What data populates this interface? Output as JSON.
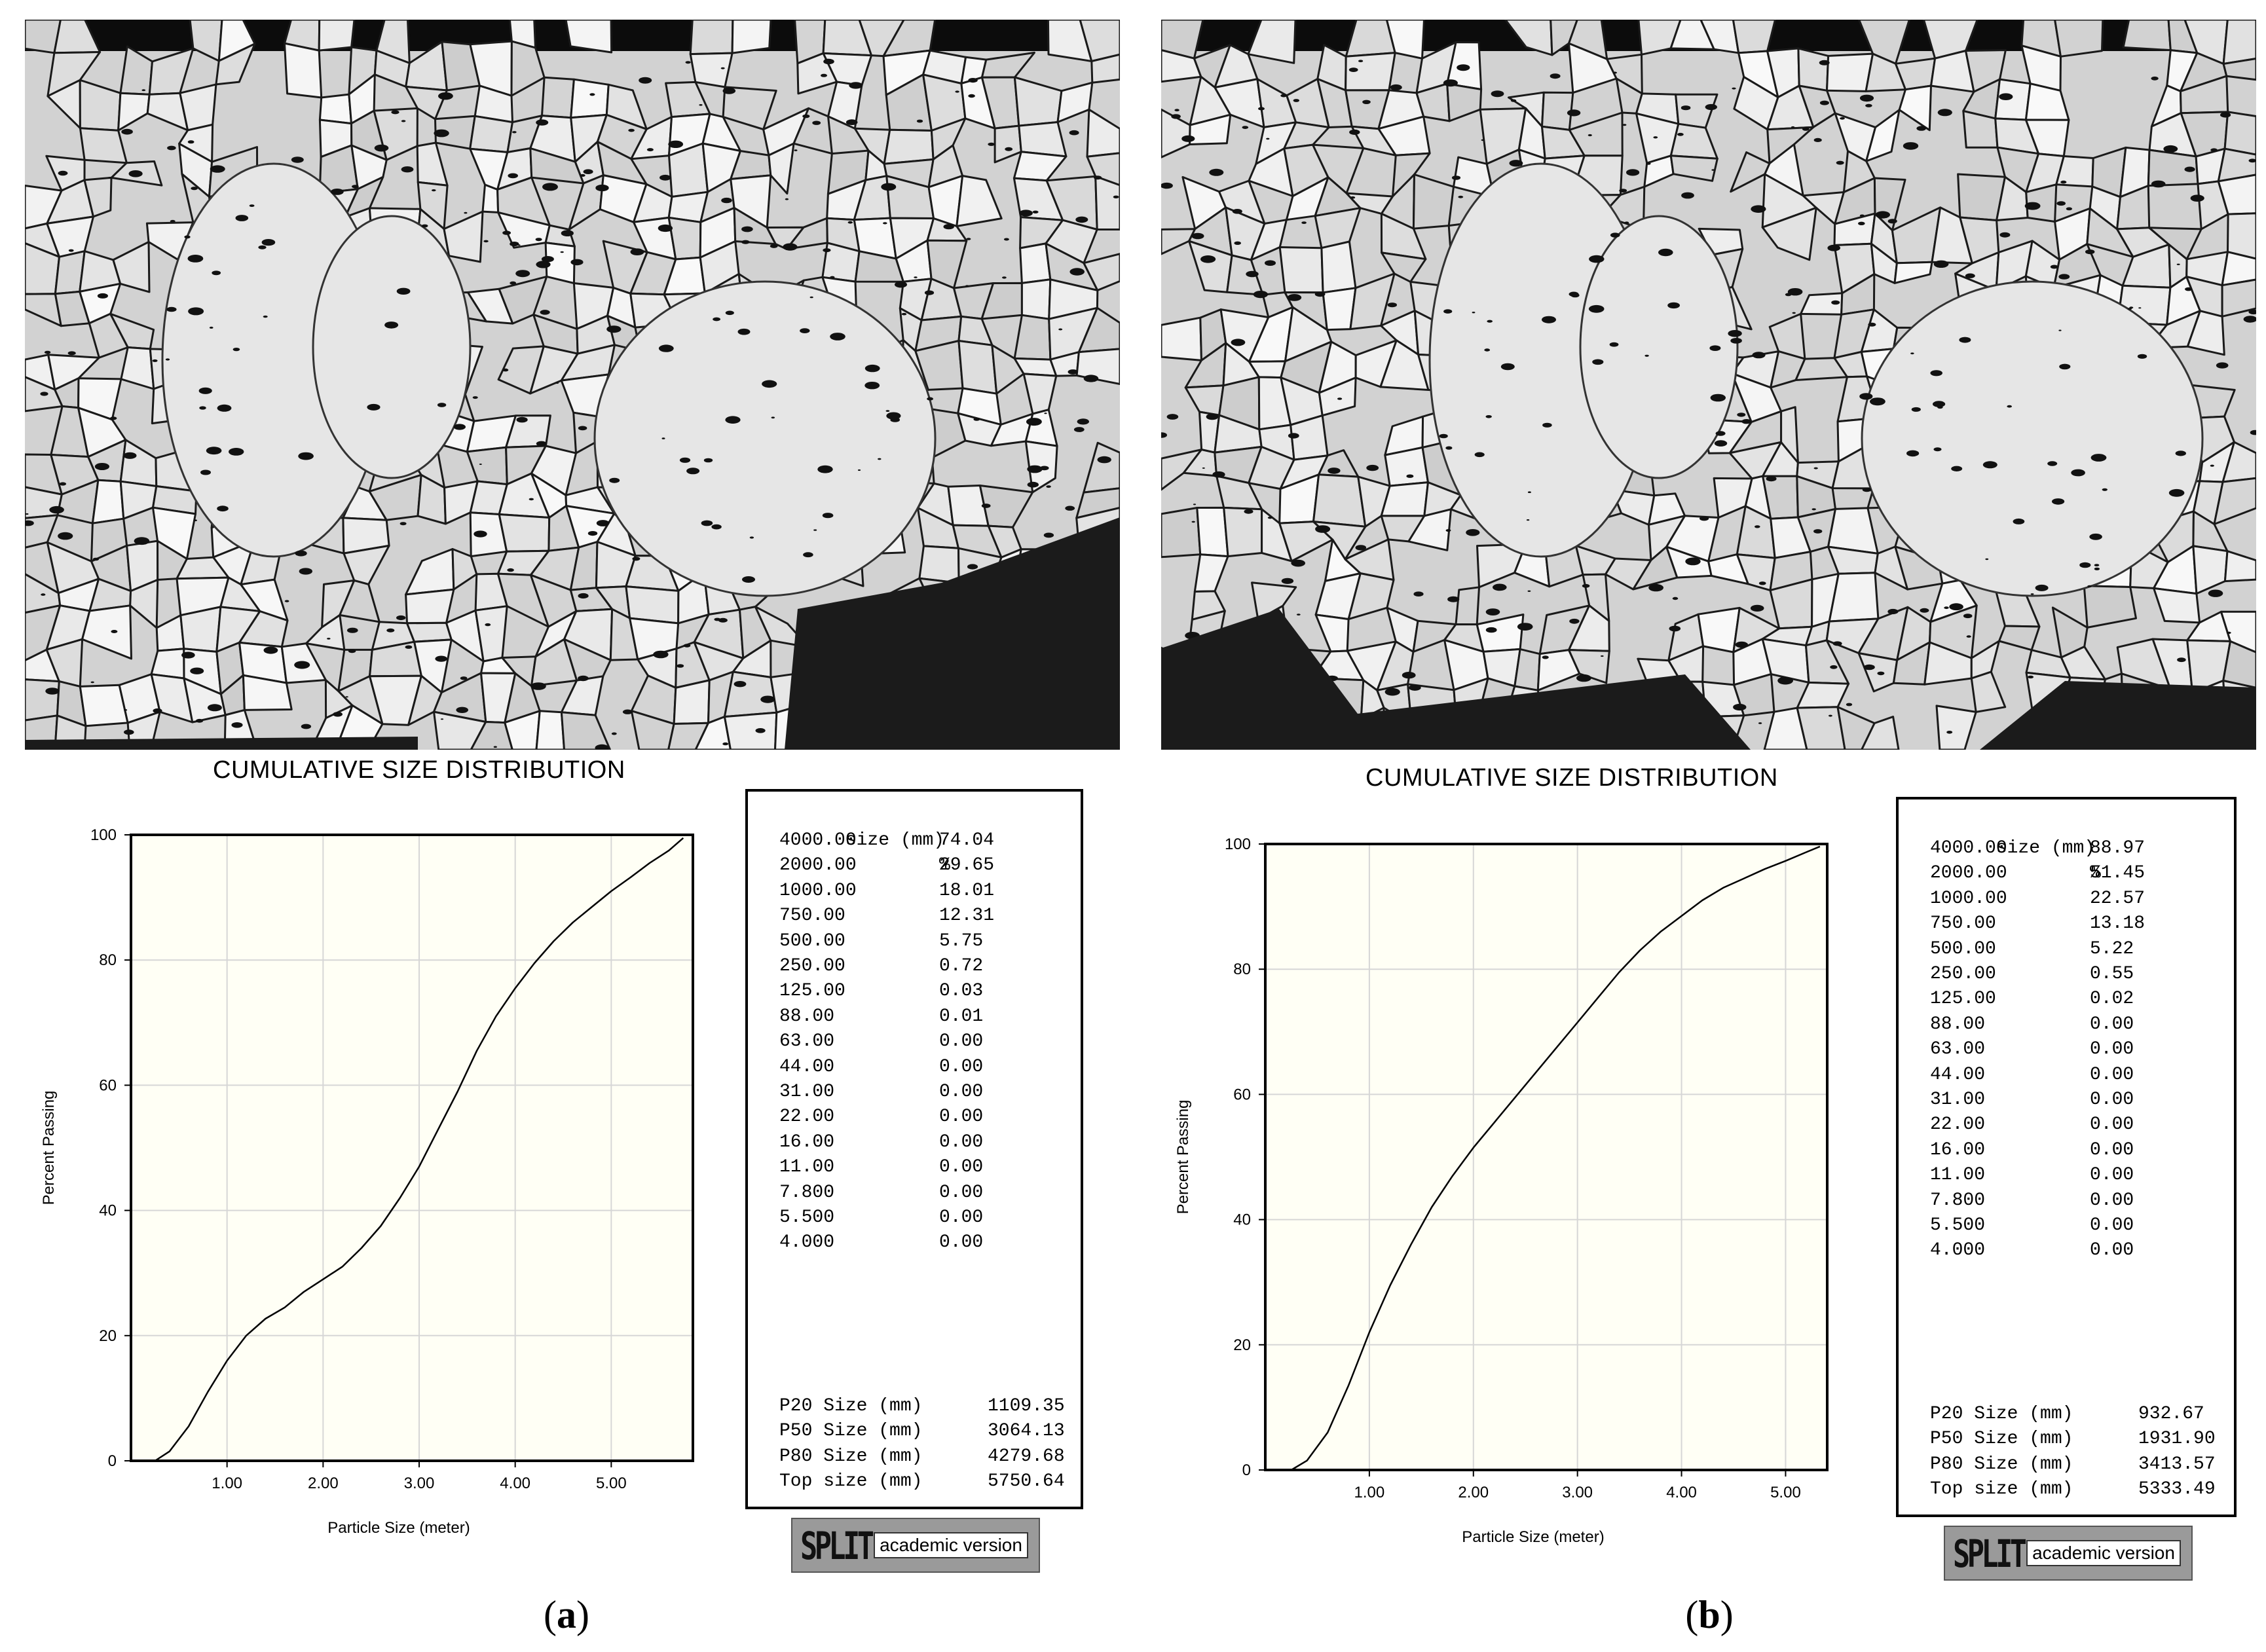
{
  "panels": [
    {
      "id": "a",
      "caption_open": "(",
      "caption_letter": "a",
      "caption_close": ")",
      "title": "CUMULATIVE SIZE DISTRIBUTION",
      "table": {
        "header": [
          "size (mm)",
          "%"
        ],
        "rows": [
          [
            "4000.00",
            "74.04"
          ],
          [
            "2000.00",
            "29.65"
          ],
          [
            "1000.00",
            "18.01"
          ],
          [
            "750.00",
            "12.31"
          ],
          [
            "500.00",
            "5.75"
          ],
          [
            "250.00",
            "0.72"
          ],
          [
            "125.00",
            "0.03"
          ],
          [
            "88.00",
            "0.01"
          ],
          [
            "63.00",
            "0.00"
          ],
          [
            "44.00",
            "0.00"
          ],
          [
            "31.00",
            "0.00"
          ],
          [
            "22.00",
            "0.00"
          ],
          [
            "16.00",
            "0.00"
          ],
          [
            "11.00",
            "0.00"
          ],
          [
            "7.800",
            "0.00"
          ],
          [
            "5.500",
            "0.00"
          ],
          [
            "4.000",
            "0.00"
          ]
        ],
        "p_sizes": [
          [
            "P20 Size (mm)",
            "1109.35"
          ],
          [
            "P50 Size (mm)",
            "3064.13"
          ],
          [
            "P80 Size (mm)",
            "4279.68"
          ],
          [
            "Top size (mm)",
            "5750.64"
          ]
        ]
      },
      "logo": {
        "word": "SPLIT",
        "sub": "academic version"
      },
      "chart_data": {
        "type": "line",
        "xlabel": "Particle Size (meter)",
        "ylabel": "Percent Passing",
        "xlim": [
          0,
          5.85
        ],
        "ylim": [
          0,
          100
        ],
        "xticks": [
          1,
          2,
          3,
          4,
          5
        ],
        "xtick_labels": [
          "1.00",
          "2.00",
          "3.00",
          "4.00",
          "5.00"
        ],
        "yticks": [
          0,
          20,
          40,
          60,
          80,
          100
        ],
        "ytick_labels": [
          "0",
          "20",
          "40",
          "60",
          "80",
          "100"
        ],
        "grid": true,
        "series": [
          {
            "x": [
              0.25,
              0.4,
              0.6,
              0.8,
              1.0,
              1.2,
              1.4,
              1.6,
              1.8,
              2.0,
              2.2,
              2.4,
              2.6,
              2.8,
              3.0,
              3.2,
              3.4,
              3.6,
              3.8,
              4.0,
              4.2,
              4.4,
              4.6,
              4.8,
              5.0,
              5.2,
              5.4,
              5.6,
              5.75
            ],
            "y": [
              0,
              1.5,
              5.5,
              11,
              16,
              20,
              22.7,
              24.5,
              27,
              29,
              31,
              34,
              37.5,
              42,
              47,
              53,
              59,
              65.5,
              71,
              75.5,
              79.5,
              83,
              86,
              88.5,
              91,
              93.2,
              95.5,
              97.5,
              99.5
            ]
          }
        ]
      }
    },
    {
      "id": "b",
      "caption_open": "(",
      "caption_letter": "b",
      "caption_close": ")",
      "title": "CUMULATIVE SIZE DISTRIBUTION",
      "table": {
        "header": [
          "size (mm)",
          "%"
        ],
        "rows": [
          [
            "4000.00",
            "88.97"
          ],
          [
            "2000.00",
            "51.45"
          ],
          [
            "1000.00",
            "22.57"
          ],
          [
            "750.00",
            "13.18"
          ],
          [
            "500.00",
            "5.22"
          ],
          [
            "250.00",
            "0.55"
          ],
          [
            "125.00",
            "0.02"
          ],
          [
            "88.00",
            "0.00"
          ],
          [
            "63.00",
            "0.00"
          ],
          [
            "44.00",
            "0.00"
          ],
          [
            "31.00",
            "0.00"
          ],
          [
            "22.00",
            "0.00"
          ],
          [
            "16.00",
            "0.00"
          ],
          [
            "11.00",
            "0.00"
          ],
          [
            "7.800",
            "0.00"
          ],
          [
            "5.500",
            "0.00"
          ],
          [
            "4.000",
            "0.00"
          ]
        ],
        "p_sizes": [
          [
            "P20 Size (mm)",
            "932.67"
          ],
          [
            "P50 Size (mm)",
            "1931.90"
          ],
          [
            "P80 Size (mm)",
            "3413.57"
          ],
          [
            "Top size (mm)",
            "5333.49"
          ]
        ]
      },
      "logo": {
        "word": "SPLIT",
        "sub": "academic version"
      },
      "chart_data": {
        "type": "line",
        "xlabel": "Particle Size (meter)",
        "ylabel": "Percent Passing",
        "xlim": [
          0,
          5.4
        ],
        "ylim": [
          0,
          100
        ],
        "xticks": [
          1,
          2,
          3,
          4,
          5
        ],
        "xtick_labels": [
          "1.00",
          "2.00",
          "3.00",
          "4.00",
          "5.00"
        ],
        "yticks": [
          0,
          20,
          40,
          60,
          80,
          100
        ],
        "ytick_labels": [
          "0",
          "20",
          "40",
          "60",
          "80",
          "100"
        ],
        "grid": true,
        "series": [
          {
            "x": [
              0.25,
              0.4,
              0.6,
              0.8,
              1.0,
              1.2,
              1.4,
              1.6,
              1.8,
              2.0,
              2.2,
              2.4,
              2.6,
              2.8,
              3.0,
              3.2,
              3.4,
              3.6,
              3.8,
              4.0,
              4.2,
              4.4,
              4.6,
              4.8,
              5.0,
              5.2,
              5.33
            ],
            "y": [
              0,
              1.5,
              6,
              13.5,
              22,
              29.5,
              36,
              42,
              47,
              51.5,
              55.5,
              59.5,
              63.5,
              67.5,
              71.5,
              75.5,
              79.5,
              83,
              86,
              88.5,
              91,
              93,
              94.5,
              96,
              97.3,
              98.7,
              99.6
            ]
          }
        ]
      }
    }
  ]
}
